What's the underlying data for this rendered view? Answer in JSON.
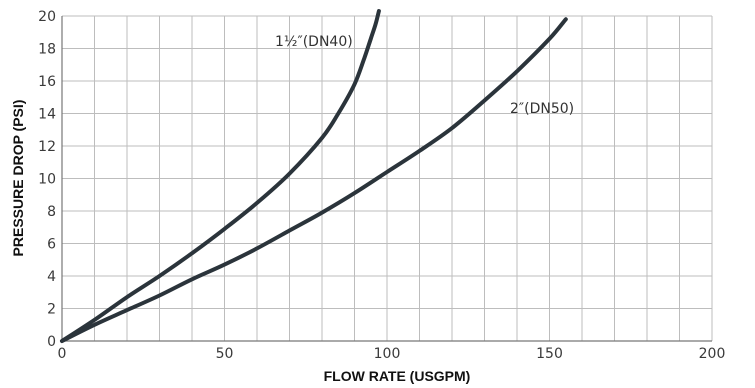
{
  "chart_data": {
    "type": "line",
    "xlabel": "FLOW RATE (USGPM)",
    "ylabel": "PRESSURE DROP (PSI)",
    "xlim": [
      0,
      200
    ],
    "ylim": [
      0,
      20
    ],
    "x_ticks": [
      0,
      50,
      100,
      150,
      200
    ],
    "x_tick_labels": [
      "0",
      "50",
      "100",
      "150",
      "200"
    ],
    "y_ticks": [
      0,
      2,
      4,
      6,
      8,
      10,
      12,
      14,
      16,
      18,
      20
    ],
    "y_tick_labels": [
      "0",
      "2",
      "4",
      "6",
      "8",
      "10",
      "12",
      "14",
      "16",
      "18",
      "20"
    ],
    "x_grid_step": 10,
    "y_grid_step": 2,
    "grid": true,
    "series": [
      {
        "name": "1½″(DN40)",
        "x": [
          0,
          10,
          20,
          30,
          40,
          50,
          60,
          70,
          80,
          85,
          90,
          93,
          95,
          96.5,
          97.5
        ],
        "y": [
          0,
          1.3,
          2.7,
          4.0,
          5.4,
          6.9,
          8.5,
          10.3,
          12.5,
          14.0,
          15.8,
          17.4,
          18.6,
          19.5,
          20.3
        ]
      },
      {
        "name": "2″(DN50)",
        "x": [
          0,
          10,
          20,
          30,
          40,
          50,
          60,
          70,
          80,
          90,
          100,
          110,
          120,
          130,
          140,
          150,
          155
        ],
        "y": [
          0,
          1.0,
          1.9,
          2.8,
          3.8,
          4.7,
          5.7,
          6.8,
          7.9,
          9.1,
          10.4,
          11.7,
          13.1,
          14.8,
          16.6,
          18.6,
          19.8
        ]
      }
    ]
  }
}
